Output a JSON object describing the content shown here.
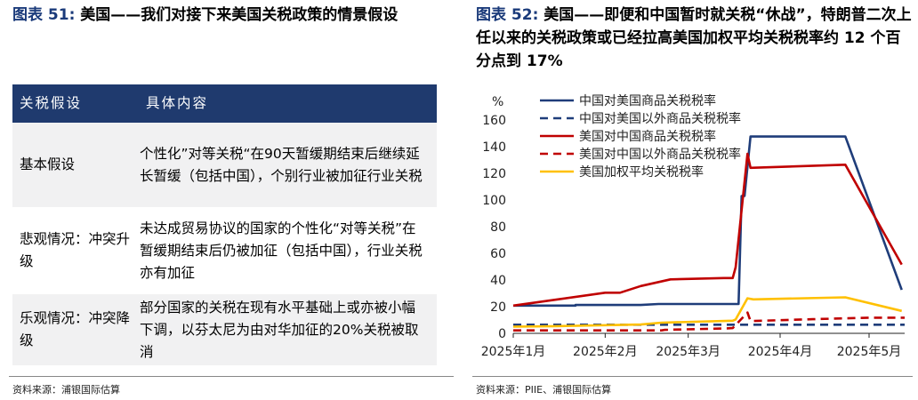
{
  "left": {
    "figure_label": "图表 51:",
    "title": "美国——我们对接下来美国关税政策的情景假设",
    "table": {
      "headers": [
        "关税假设",
        "具体内容"
      ],
      "rows": [
        {
          "label": "基本假设",
          "content": "个性化”对等关税“在90天暂缓期结束后继续延长暂缓（包括中国），个别行业被加征行业关税"
        },
        {
          "label": "悲观情况：冲突升级",
          "content": "未达成贸易协议的国家的个性化“对等关税”在暂缓期结束后仍被加征（包括中国），行业关税亦有加征"
        },
        {
          "label": "乐观情况：冲突降级",
          "content": "部分国家的关税在现有水平基础上或亦被小幅下调，以芬太尼为由对华加征的20%关税被取消"
        }
      ]
    },
    "source": "资料来源：浦银国际估算"
  },
  "right": {
    "figure_label": "图表 52:",
    "title": "美国——即便和中国暂时就关税“休战”，特朗普二次上任以来的关税政策或已经拉高美国加权平均关税税率约 12 个百分点到 17%",
    "source": "资料来源：PIIE、浦银国际估算"
  },
  "chart_data": {
    "type": "line",
    "ylabel": "%",
    "ylim": [
      0,
      160
    ],
    "yticks": [
      0,
      20,
      40,
      60,
      80,
      100,
      120,
      140,
      160
    ],
    "x_tick_labels": [
      "2025年1月",
      "2025年2月",
      "2025年3月",
      "2025年4月",
      "2025年5月"
    ],
    "x_tick_dates": [
      "2025-01-20",
      "2025-02-20",
      "2025-03-20",
      "2025-04-20",
      "2025-05-20"
    ],
    "xlim": [
      "2025-01-20",
      "2025-06-01"
    ],
    "grid": false,
    "legend_position": "top-left",
    "series": [
      {
        "name": "中国对美国商品关税税率",
        "color": "#1f3d7a",
        "dash": "solid",
        "points": [
          [
            "2025-01-20",
            20.8
          ],
          [
            "2025-02-10",
            20.8
          ],
          [
            "2025-02-10",
            21.3
          ],
          [
            "2025-03-04",
            21.3
          ],
          [
            "2025-03-10",
            22.0
          ],
          [
            "2025-04-04",
            22.0
          ],
          [
            "2025-04-06",
            22.0
          ],
          [
            "2025-04-07",
            103
          ],
          [
            "2025-04-08",
            103
          ],
          [
            "2025-04-10",
            147.6
          ],
          [
            "2025-05-12",
            147.6
          ],
          [
            "2025-05-31",
            32.6
          ]
        ]
      },
      {
        "name": "中国对美国以外商品关税税率",
        "color": "#1f3d7a",
        "dash": "dashed",
        "points": [
          [
            "2025-01-20",
            6.5
          ],
          [
            "2025-06-01",
            6.5
          ]
        ]
      },
      {
        "name": "美国对中国商品关税税率",
        "color": "#c00000",
        "dash": "solid",
        "points": [
          [
            "2025-01-20",
            20.8
          ],
          [
            "2025-02-04",
            25.5
          ],
          [
            "2025-02-20",
            30.5
          ],
          [
            "2025-02-25",
            30.5
          ],
          [
            "2025-03-04",
            35.5
          ],
          [
            "2025-03-14",
            40.5
          ],
          [
            "2025-04-01",
            41.5
          ],
          [
            "2025-04-04",
            41.5
          ],
          [
            "2025-04-05",
            49.6
          ],
          [
            "2025-04-09",
            134.7
          ],
          [
            "2025-04-10",
            124.1
          ],
          [
            "2025-05-12",
            126.5
          ],
          [
            "2025-05-31",
            51.6
          ]
        ]
      },
      {
        "name": "美国对中国以外商品关税税率",
        "color": "#c00000",
        "dash": "dashed",
        "points": [
          [
            "2025-01-20",
            2.2
          ],
          [
            "2025-03-11",
            2.2
          ],
          [
            "2025-03-12",
            2.6
          ],
          [
            "2025-04-02",
            3.7
          ],
          [
            "2025-04-04",
            3.9
          ],
          [
            "2025-04-09",
            15.6
          ],
          [
            "2025-04-10",
            9.2
          ],
          [
            "2025-05-01",
            10.6
          ],
          [
            "2025-05-20",
            11.7
          ],
          [
            "2025-06-01",
            11.7
          ]
        ]
      },
      {
        "name": "美国加权平均关税税率",
        "color": "#ffc000",
        "dash": "solid",
        "points": [
          [
            "2025-01-20",
            5.0
          ],
          [
            "2025-02-04",
            5.4
          ],
          [
            "2025-03-04",
            6.6
          ],
          [
            "2025-03-11",
            8.0
          ],
          [
            "2025-04-04",
            9.5
          ],
          [
            "2025-04-05",
            10.4
          ],
          [
            "2025-04-09",
            26.3
          ],
          [
            "2025-04-11",
            25.5
          ],
          [
            "2025-05-12",
            27.0
          ],
          [
            "2025-05-31",
            16.8
          ]
        ]
      }
    ]
  }
}
